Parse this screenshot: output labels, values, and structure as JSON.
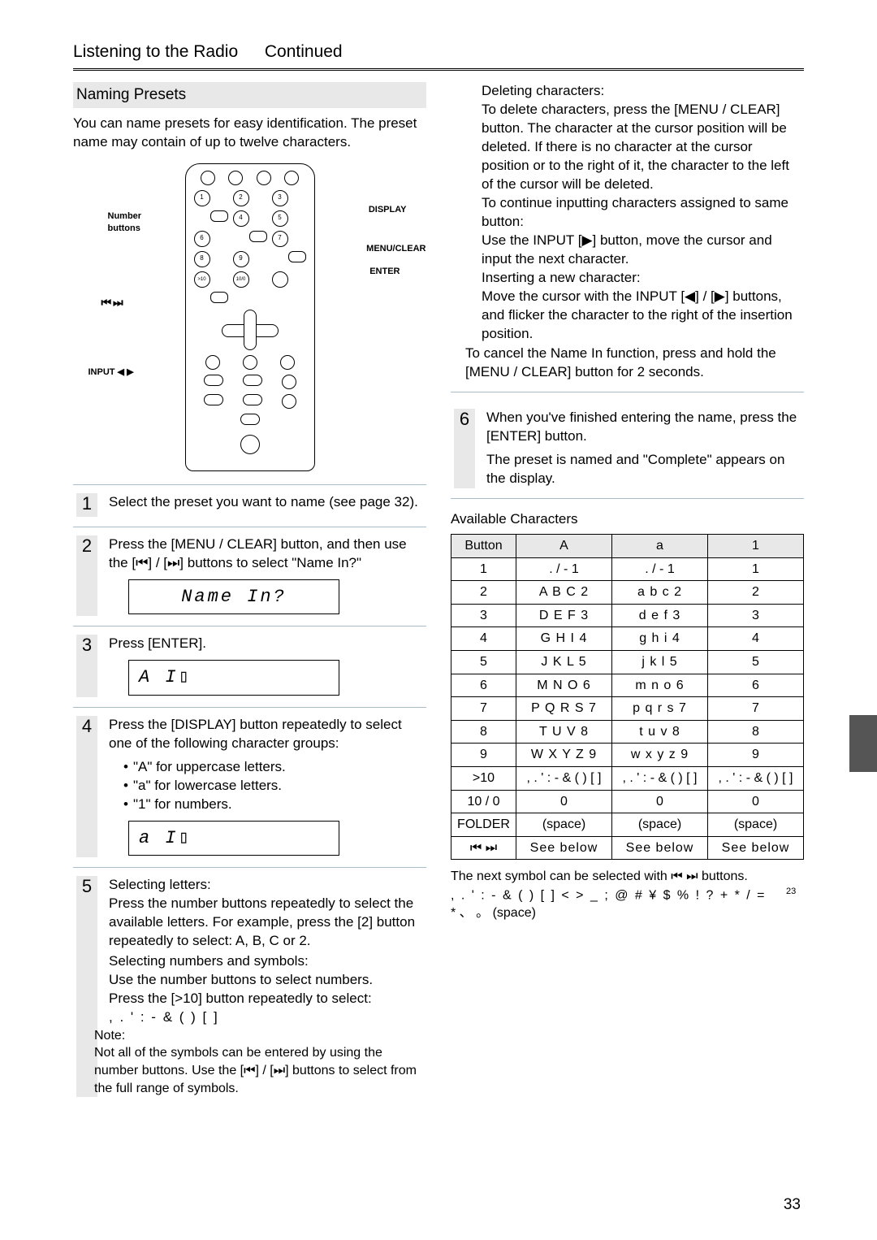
{
  "header": {
    "title": "Listening to the Radio",
    "continued": "Continued"
  },
  "section": {
    "heading": "Naming Presets",
    "intro": "You can name presets for easy identification. The preset name may contain of up to twelve characters."
  },
  "remote": {
    "labels": {
      "number": "Number\nbuttons",
      "display": "DISPLAY",
      "menuclear": "MENU/CLEAR",
      "enter": "ENTER",
      "prevnext": "⏮ ⏭",
      "input": "INPUT ◀ ▶"
    }
  },
  "steps": [
    {
      "num": "1",
      "main": "Select the preset you want to name (see page 32)."
    },
    {
      "num": "2",
      "main": "Press the [MENU / CLEAR] button, and then use the [⏮] / [⏭] buttons to select \"Name In?\"",
      "display": "Name In?"
    },
    {
      "num": "3",
      "main": "Press [ENTER].",
      "display": "A I▯"
    },
    {
      "num": "4",
      "main": "Press the [DISPLAY] button repeatedly to select one of the following character groups:",
      "bullets": [
        "\"A\" for uppercase letters.",
        "\"a\" for lowercase letters.",
        "\"1\" for numbers."
      ],
      "display": "a I▯"
    },
    {
      "num": "5",
      "blocks": [
        {
          "h": "Selecting letters:",
          "p": "Press the number buttons repeatedly to select the available letters. For example, press the [2] button repeatedly to select: A, B, C or 2."
        },
        {
          "h": "Selecting numbers and symbols:",
          "p": "Use the number buttons to select numbers."
        },
        {
          "p2": "Press the [>10] button repeatedly to select:"
        },
        {
          "sym": ", . ' : - & ( ) [ ]"
        }
      ],
      "note_label": "Note:",
      "note": "Not all of the symbols can be entered by using the number buttons. Use the [⏮] / [⏭] buttons to select from the full range of symbols."
    }
  ],
  "right_top": {
    "blocks": [
      {
        "h": "Deleting characters:",
        "p": "To delete characters, press the [MENU / CLEAR] button. The character at the cursor position will be deleted. If there is no character at the cursor position or to the right of it, the character to the left of the cursor will be deleted."
      },
      {
        "h": "To continue inputting characters assigned to same button:",
        "p": "Use the INPUT [▶] button, move the cursor and input the next character."
      },
      {
        "h": "Inserting a new character:",
        "p": "Move the cursor with the INPUT [◀] / [▶] buttons, and flicker the character to the right of the insertion position."
      }
    ],
    "cancel": "To cancel the Name In function, press and hold the [MENU / CLEAR] button for 2 seconds."
  },
  "step6": {
    "num": "6",
    "main": "When you've finished entering the name, press the [ENTER] button.",
    "sub": "The preset is named and \"Complete\" appears on the display."
  },
  "table": {
    "title": "Available Characters",
    "headers": [
      "Button",
      "A",
      "a",
      "1"
    ],
    "rows": [
      [
        "1",
        ". / - 1",
        ". / - 1",
        "1"
      ],
      [
        "2",
        "A B C 2",
        "a b c 2",
        "2"
      ],
      [
        "3",
        "D E F 3",
        "d e f 3",
        "3"
      ],
      [
        "4",
        "G H I 4",
        "g h i 4",
        "4"
      ],
      [
        "5",
        "J K L 5",
        "j k l 5",
        "5"
      ],
      [
        "6",
        "M N O 6",
        "m n o 6",
        "6"
      ],
      [
        "7",
        "P Q R S 7",
        "p q r s 7",
        "7"
      ],
      [
        "8",
        "T U V 8",
        "t u v 8",
        "8"
      ],
      [
        "9",
        "W X Y Z 9",
        "w x y z 9",
        "9"
      ],
      [
        ">10",
        ", . ' : - & ( ) [ ]",
        ", . ' : - & ( ) [ ]",
        ", . ' : - & ( ) [ ]"
      ],
      [
        "10 / 0",
        "0",
        "0",
        "0"
      ],
      [
        "FOLDER",
        "(space)",
        "(space)",
        "(space)"
      ],
      [
        "⏮ ⏭",
        "See below",
        "See below",
        "See below"
      ]
    ]
  },
  "post_table": {
    "line1": "The next symbol can be selected with ⏮ ⏭ buttons.",
    "symbols": ", . ' : - & ( ) [ ] < > _ ; @ # ¥ $ % ! ? + * / =",
    "sup": "23",
    "line3": "* 、 。 (space)"
  },
  "page_number": "33"
}
